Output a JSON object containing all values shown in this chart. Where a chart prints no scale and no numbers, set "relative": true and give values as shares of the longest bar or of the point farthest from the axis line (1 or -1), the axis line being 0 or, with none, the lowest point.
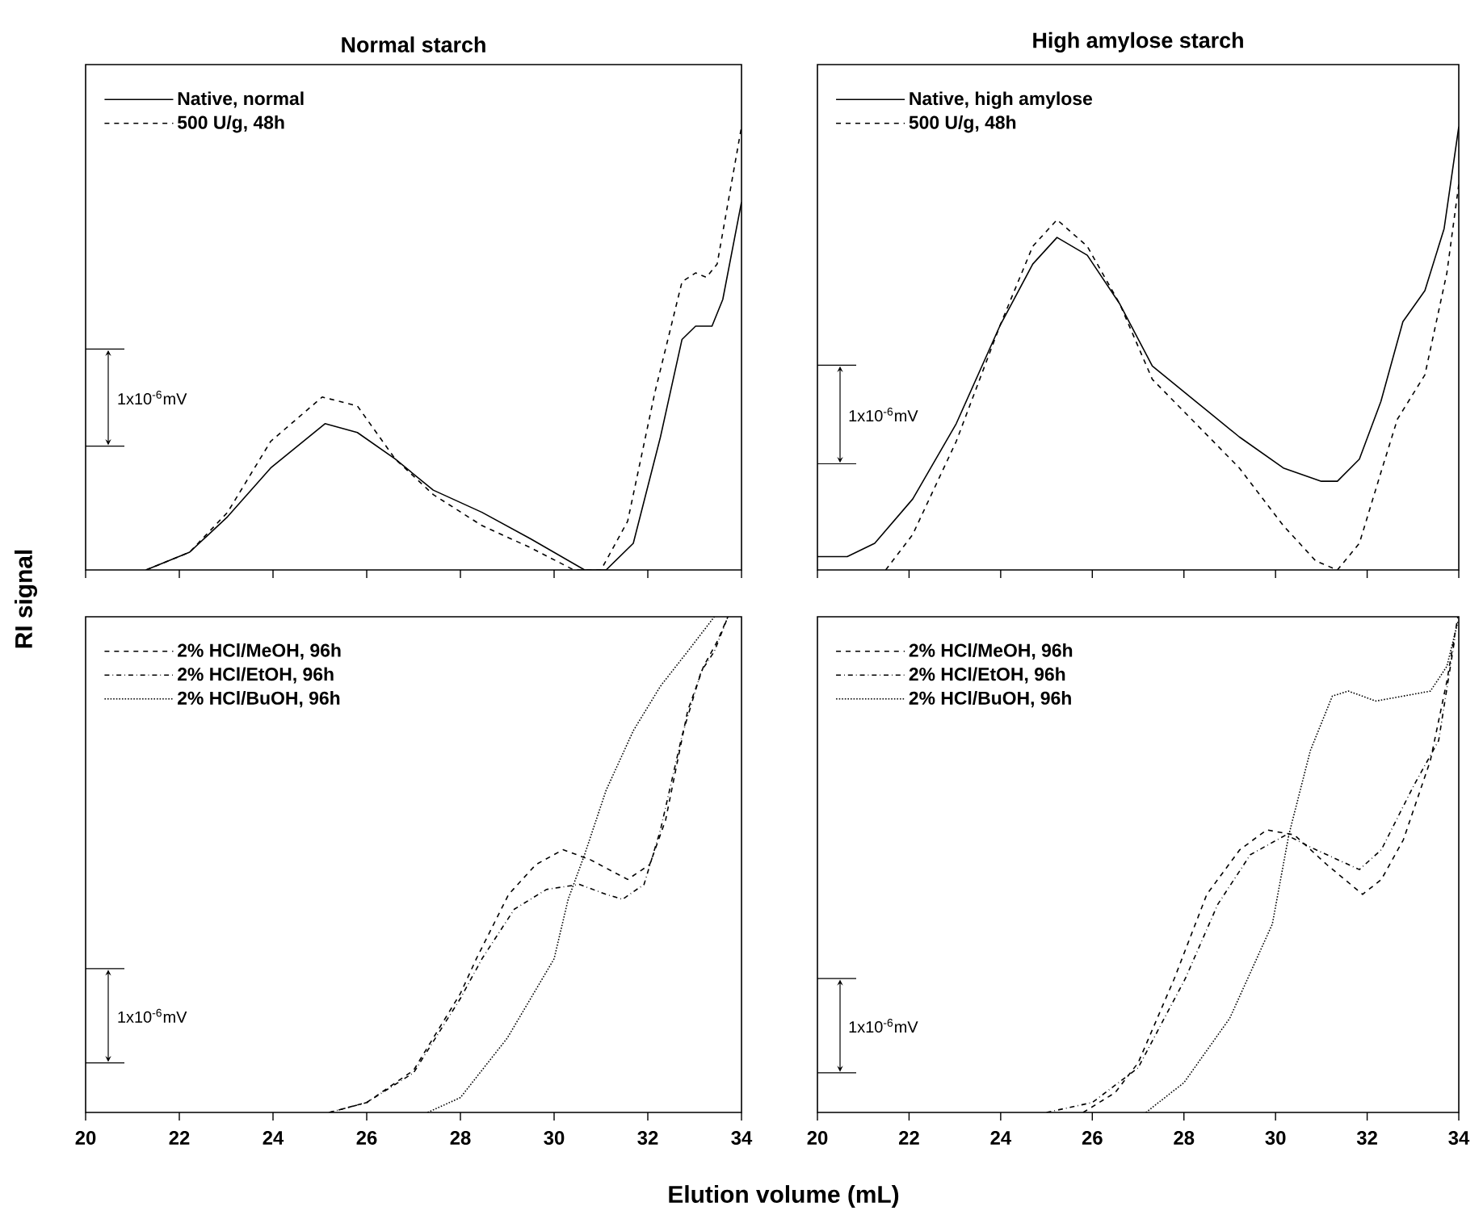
{
  "chart_data": [
    {
      "type": "line",
      "title": "Normal starch",
      "ylabel": "RI signal",
      "relative": true,
      "xlim": [
        20,
        34
      ],
      "xticks": [
        20,
        22,
        24,
        26,
        28,
        30,
        32,
        34
      ],
      "tick_labels": false,
      "legend": "top left",
      "annotations": [
        "1x10$^{-6}$mV"
      ],
      "series": [
        {
          "name": "Native, normal",
          "color": "#000000",
          "line_style": "solid",
          "x": [
            21.29,
            22.22,
            23.03,
            23.95,
            25.11,
            25.8,
            26.61,
            27.42,
            28.46,
            29.5,
            30.65,
            31.11,
            31.69,
            32.27,
            32.73,
            33.02,
            33.37,
            33.6,
            34
          ],
          "values": [
            0,
            0.04,
            0.12,
            0.23,
            0.33,
            0.31,
            0.25,
            0.18,
            0.13,
            0.07,
            0.0,
            0,
            0.06,
            0.3,
            0.52,
            0.55,
            0.55,
            0.61,
            0.83
          ]
        },
        {
          "name": "500 U/g, 48h",
          "color": "#000000",
          "line_style": "dashed",
          "x": [
            21.29,
            22.22,
            23.03,
            23.95,
            25.05,
            25.8,
            26.61,
            27.42,
            28.46,
            29.5,
            30.42,
            31.0,
            31.57,
            32.15,
            32.73,
            33.02,
            33.25,
            33.48,
            34
          ],
          "values": [
            0,
            0.04,
            0.13,
            0.29,
            0.39,
            0.37,
            0.25,
            0.17,
            0.1,
            0.05,
            0,
            0,
            0.11,
            0.4,
            0.65,
            0.67,
            0.66,
            0.69,
            1.0
          ]
        }
      ]
    },
    {
      "type": "line",
      "title": "High amylose starch",
      "relative": true,
      "xlim": [
        20,
        34
      ],
      "xticks": [
        20,
        22,
        24,
        26,
        28,
        30,
        32,
        34
      ],
      "tick_labels": false,
      "legend": "top left",
      "annotations": [
        "1x10$^{-6}$mV"
      ],
      "series": [
        {
          "name": "Native, high amylose",
          "color": "#000000",
          "line_style": "solid",
          "x": [
            20,
            20.65,
            21.25,
            22.08,
            23.03,
            23.98,
            24.7,
            25.23,
            25.89,
            26.6,
            27.31,
            28.26,
            29.21,
            30.17,
            31.0,
            31.35,
            31.83,
            32.3,
            32.78,
            33.26,
            33.68,
            34
          ],
          "values": [
            0.03,
            0.03,
            0.06,
            0.16,
            0.33,
            0.55,
            0.69,
            0.75,
            0.71,
            0.6,
            0.46,
            0.38,
            0.3,
            0.23,
            0.2,
            0.2,
            0.25,
            0.38,
            0.56,
            0.63,
            0.77,
            1.0
          ]
        },
        {
          "name": "500 U/g, 48h",
          "color": "#000000",
          "line_style": "dashed",
          "x": [
            21.49,
            22.08,
            23.03,
            23.98,
            24.7,
            25.23,
            25.89,
            26.6,
            27.31,
            28.26,
            29.21,
            30.17,
            30.88,
            31.35,
            31.83,
            32.3,
            32.66,
            33.26,
            33.74,
            34
          ],
          "values": [
            0,
            0.08,
            0.29,
            0.55,
            0.73,
            0.79,
            0.73,
            0.6,
            0.43,
            0.33,
            0.23,
            0.1,
            0.02,
            0,
            0.06,
            0.22,
            0.34,
            0.44,
            0.67,
            0.87
          ]
        }
      ]
    },
    {
      "type": "line",
      "xlabel": "Elution volume (mL)",
      "relative": true,
      "xlim": [
        20,
        34
      ],
      "xticks": [
        20,
        22,
        24,
        26,
        28,
        30,
        32,
        34
      ],
      "tick_labels": "x",
      "legend": "top left",
      "annotations": [
        "1x10$^{-6}$mV"
      ],
      "series": [
        {
          "name": "2% HCl/MeOH, 96h",
          "color": "#000000",
          "line_style": "dashed",
          "x": [
            25.2,
            26,
            27,
            28,
            28.34,
            29.03,
            29.61,
            30.19,
            30.77,
            31.57,
            32.04,
            32.38,
            32.85,
            33.19,
            33.48,
            33.71
          ],
          "values": [
            0,
            0.02,
            0.085,
            0.24,
            0.31,
            0.44,
            0.5,
            0.53,
            0.51,
            0.47,
            0.5,
            0.59,
            0.81,
            0.9,
            0.95,
            1.0
          ]
        },
        {
          "name": "2% HCl/EtOH, 96h",
          "color": "#000000",
          "line_style": "dashdot",
          "x": [
            25.2,
            26,
            27,
            28,
            28.46,
            29.15,
            29.84,
            30.54,
            31.11,
            31.46,
            31.92,
            32.27,
            32.73,
            33.14,
            33.42,
            33.71
          ],
          "values": [
            0,
            0.02,
            0.08,
            0.23,
            0.31,
            0.41,
            0.45,
            0.46,
            0.44,
            0.43,
            0.46,
            0.57,
            0.76,
            0.89,
            0.93,
            1.0
          ]
        },
        {
          "name": "2% HCl/BuOH, 96h",
          "color": "#000000",
          "line_style": "dotted",
          "x": [
            27.3,
            28,
            29,
            30,
            30.3,
            30.65,
            31.11,
            31.69,
            32.27,
            32.85,
            33.42
          ],
          "values": [
            0,
            0.03,
            0.15,
            0.31,
            0.43,
            0.52,
            0.65,
            0.77,
            0.86,
            0.93,
            1.0
          ]
        }
      ]
    },
    {
      "type": "line",
      "relative": true,
      "xlim": [
        20,
        34
      ],
      "xticks": [
        20,
        22,
        24,
        26,
        28,
        30,
        32,
        34
      ],
      "tick_labels": "x",
      "legend": "top left",
      "annotations": [
        "1x10$^{-6}$mV"
      ],
      "series": [
        {
          "name": "2% HCl/MeOH, 96h",
          "color": "#000000",
          "line_style": "dashed",
          "x": [
            25.8,
            26.5,
            27.0,
            27.79,
            28.5,
            29.22,
            29.81,
            30.41,
            31.12,
            31.9,
            32.31,
            32.79,
            33.38,
            33.74,
            33.98
          ],
          "values": [
            0,
            0.04,
            0.1,
            0.27,
            0.44,
            0.53,
            0.57,
            0.56,
            0.5,
            0.44,
            0.47,
            0.55,
            0.71,
            0.87,
            1.0
          ]
        },
        {
          "name": "2% HCl/EtOH, 96h",
          "color": "#000000",
          "line_style": "dashdot",
          "x": [
            25.0,
            26,
            27,
            28.03,
            28.74,
            29.45,
            30.23,
            30.88,
            31.83,
            32.31,
            33.02,
            33.56,
            33.92
          ],
          "values": [
            0,
            0.02,
            0.09,
            0.27,
            0.42,
            0.52,
            0.56,
            0.53,
            0.49,
            0.53,
            0.66,
            0.75,
            0.96
          ]
        },
        {
          "name": "2% HCl/BuOH, 96h",
          "color": "#000000",
          "line_style": "dotted",
          "x": [
            27.17,
            28,
            29,
            29.93,
            30.29,
            30.76,
            31.24,
            31.59,
            32.19,
            32.79,
            33.38,
            33.74,
            33.98
          ],
          "values": [
            0,
            0.06,
            0.19,
            0.38,
            0.56,
            0.73,
            0.84,
            0.85,
            0.83,
            0.84,
            0.85,
            0.9,
            0.99
          ]
        }
      ]
    }
  ]
}
